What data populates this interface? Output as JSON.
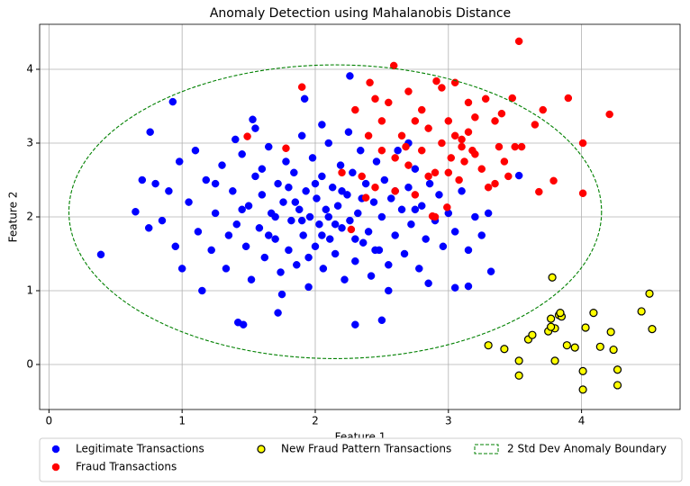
{
  "chart_data": {
    "type": "scatter",
    "title": "Anomaly Detection using Mahalanobis Distance",
    "x_label": "Feature 1",
    "y_label": "Feature 2",
    "xlim": [
      -0.07,
      4.74
    ],
    "ylim": [
      -0.61,
      4.61
    ],
    "xticks": [
      0,
      1,
      2,
      3,
      4
    ],
    "yticks": [
      0,
      1,
      2,
      3,
      4
    ],
    "grid": true,
    "legend": "below",
    "series": [
      {
        "name": "Legitimate Transactions",
        "color": "#0000ff",
        "x": [
          0.39,
          0.93,
          0.76,
          2.26,
          1.92,
          3.53,
          3.32,
          1.46,
          1.42,
          2.5,
          2.3,
          0.65,
          3.05,
          3.15,
          1.72,
          1.53,
          1.05,
          1.12,
          1.18,
          1.22,
          1.25,
          1.3,
          1.33,
          1.38,
          1.41,
          1.45,
          1.48,
          1.5,
          1.52,
          1.55,
          1.58,
          1.6,
          1.62,
          1.65,
          1.67,
          1.7,
          1.72,
          1.74,
          1.76,
          1.78,
          1.8,
          1.82,
          1.84,
          1.86,
          1.88,
          1.9,
          1.91,
          1.93,
          1.95,
          1.96,
          1.98,
          2.0,
          2.01,
          2.03,
          2.05,
          2.06,
          2.08,
          2.1,
          2.11,
          2.13,
          2.15,
          2.17,
          2.19,
          2.2,
          2.22,
          2.24,
          2.26,
          2.28,
          2.3,
          2.32,
          2.34,
          2.36,
          2.38,
          2.4,
          2.42,
          2.44,
          2.46,
          2.48,
          2.5,
          2.52,
          2.55,
          2.57,
          2.6,
          2.62,
          2.65,
          2.67,
          2.7,
          2.72,
          2.75,
          2.78,
          2.8,
          2.83,
          2.86,
          2.9,
          2.93,
          2.96,
          3.0,
          3.05,
          3.1,
          3.15,
          3.2,
          3.25,
          3.3,
          0.8,
          0.85,
          0.9,
          0.95,
          0.98,
          0.7,
          0.75,
          1.0,
          1.1,
          1.15,
          1.4,
          1.55,
          1.75,
          2.05,
          2.25,
          2.55,
          2.7,
          2.85,
          1.95,
          2.0,
          1.85,
          2.15,
          2.1,
          1.9,
          2.05,
          1.8,
          2.2,
          1.7,
          2.3,
          1.65,
          2.35,
          1.6,
          2.45,
          2.6,
          1.45,
          1.35,
          2.75,
          1.25
        ],
        "y": [
          1.49,
          3.56,
          3.15,
          3.91,
          3.6,
          2.56,
          1.26,
          0.54,
          0.57,
          0.6,
          0.54,
          2.07,
          1.04,
          1.06,
          0.7,
          3.32,
          2.2,
          1.8,
          2.5,
          1.55,
          2.05,
          2.7,
          1.3,
          2.35,
          1.9,
          2.85,
          1.6,
          2.15,
          1.15,
          2.55,
          1.85,
          2.3,
          1.45,
          2.95,
          2.05,
          1.7,
          2.45,
          1.25,
          2.2,
          2.75,
          1.55,
          1.95,
          2.6,
          1.35,
          2.1,
          3.1,
          1.75,
          2.35,
          1.05,
          2.0,
          2.8,
          1.6,
          2.25,
          1.9,
          2.55,
          1.3,
          2.1,
          3.0,
          1.7,
          2.4,
          1.5,
          2.15,
          2.7,
          1.85,
          1.15,
          2.3,
          1.95,
          2.6,
          1.4,
          2.05,
          2.9,
          1.65,
          2.45,
          1.8,
          1.2,
          2.2,
          2.75,
          1.55,
          2.0,
          2.5,
          1.35,
          2.25,
          1.75,
          2.9,
          2.1,
          1.5,
          2.4,
          1.9,
          2.65,
          1.3,
          2.15,
          1.7,
          2.45,
          1.95,
          2.3,
          1.6,
          2.05,
          1.8,
          2.35,
          1.55,
          2.0,
          1.75,
          2.05,
          2.45,
          1.95,
          2.35,
          1.6,
          2.75,
          2.5,
          1.85,
          1.3,
          2.9,
          1.0,
          3.05,
          3.2,
          0.95,
          3.25,
          3.15,
          1.0,
          3.0,
          1.1,
          1.45,
          2.45,
          2.2,
          1.9,
          2.0,
          1.95,
          1.75,
          2.4,
          2.35,
          2.0,
          1.7,
          1.75,
          2.25,
          2.65,
          1.55,
          2.35,
          2.1,
          1.75,
          2.1,
          2.45
        ]
      },
      {
        "name": "Fraud Transactions",
        "color": "#ff0000",
        "x": [
          3.53,
          2.59,
          1.9,
          2.41,
          4.21,
          4.01,
          4.01,
          3.68,
          3.79,
          3.9,
          3.71,
          3.48,
          1.49,
          1.78,
          2.27,
          2.38,
          2.99,
          2.88,
          3.05,
          2.91,
          2.5,
          2.6,
          2.65,
          2.7,
          2.75,
          2.8,
          2.85,
          2.9,
          2.95,
          3.0,
          3.02,
          3.05,
          3.08,
          3.1,
          3.12,
          3.15,
          3.18,
          3.2,
          3.25,
          3.28,
          3.3,
          3.35,
          3.38,
          3.42,
          3.45,
          3.5,
          3.55,
          3.65,
          3.4,
          2.45,
          2.55,
          2.7,
          2.8,
          2.35,
          2.4,
          2.6,
          2.9,
          3.0,
          2.2,
          2.3,
          3.2,
          2.5,
          3.1,
          2.85,
          2.68,
          3.35,
          2.95,
          3.15,
          2.75,
          2.45
        ],
        "y": [
          4.38,
          4.05,
          3.76,
          3.82,
          3.39,
          3.0,
          2.32,
          2.34,
          2.49,
          3.61,
          3.45,
          3.61,
          3.09,
          2.93,
          1.83,
          2.26,
          2.13,
          2.01,
          3.82,
          3.84,
          2.9,
          2.8,
          3.1,
          2.7,
          3.3,
          2.9,
          3.2,
          2.6,
          3.0,
          3.3,
          2.8,
          3.1,
          2.5,
          3.05,
          2.75,
          3.15,
          2.9,
          3.35,
          2.65,
          3.6,
          2.4,
          3.3,
          2.95,
          2.75,
          2.55,
          2.95,
          2.95,
          3.25,
          3.4,
          2.4,
          3.55,
          3.7,
          3.45,
          2.55,
          3.1,
          2.35,
          2.0,
          2.6,
          2.6,
          3.45,
          2.85,
          3.3,
          2.95,
          2.55,
          2.95,
          2.45,
          3.75,
          3.55,
          2.3,
          3.6
        ]
      },
      {
        "name": "New Fraud Pattern Transactions",
        "color": "#ffff00",
        "edgecolor": "#000000",
        "x": [
          3.3,
          3.42,
          3.53,
          3.53,
          3.6,
          3.63,
          3.78,
          3.75,
          3.77,
          3.8,
          3.77,
          3.8,
          3.83,
          3.85,
          3.84,
          3.89,
          3.95,
          4.01,
          4.01,
          4.03,
          4.09,
          4.14,
          4.22,
          4.24,
          4.27,
          4.27,
          4.45,
          4.51,
          4.53
        ],
        "y": [
          0.26,
          0.21,
          0.05,
          -0.15,
          0.34,
          0.4,
          1.18,
          0.45,
          0.62,
          0.49,
          0.51,
          0.05,
          0.67,
          0.65,
          0.7,
          0.26,
          0.23,
          -0.09,
          -0.34,
          0.5,
          0.7,
          0.24,
          0.44,
          0.2,
          -0.07,
          -0.28,
          0.72,
          0.96,
          0.48
        ]
      }
    ],
    "ellipse": {
      "name": "2 Std Dev Anomaly Boundary",
      "color": "#008000",
      "center": [
        2.15,
        2.07
      ],
      "radii": [
        2.0,
        1.99
      ]
    }
  }
}
